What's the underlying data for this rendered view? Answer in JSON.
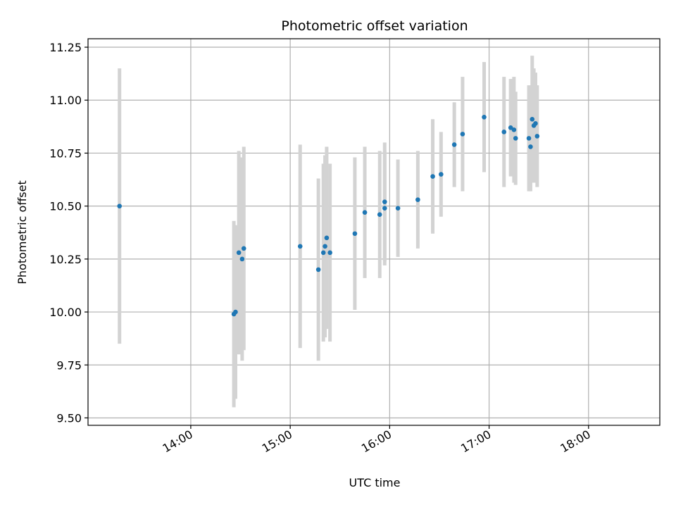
{
  "chart_data": {
    "type": "scatter",
    "title": "Photometric offset variation",
    "xlabel": "UTC time",
    "ylabel": "Photometric offset",
    "x_tick_labels": [
      "14:00",
      "15:00",
      "16:00",
      "17:00",
      "18:00"
    ],
    "y_tick_labels": [
      "9.50",
      "9.75",
      "10.00",
      "10.25",
      "10.50",
      "10.75",
      "11.00",
      "11.25"
    ],
    "grid": true,
    "colors": {
      "points": "#1f77b4",
      "error_bars": "#d3d3d3",
      "grid": "#b0b0b0"
    },
    "series": [
      {
        "x": [
          "13:17",
          "14:26",
          "14:27",
          "14:29",
          "14:31",
          "14:32",
          "15:06",
          "15:17",
          "15:20",
          "15:21",
          "15:22",
          "15:24",
          "15:39",
          "15:45",
          "15:54",
          "15:57",
          "15:57",
          "16:05",
          "16:17",
          "16:26",
          "16:31",
          "16:39",
          "16:44",
          "16:57",
          "17:09",
          "17:13",
          "17:15",
          "17:16",
          "17:24",
          "17:25",
          "17:26",
          "17:27",
          "17:28",
          "17:29"
        ],
        "y": [
          10.5,
          9.99,
          10.0,
          10.28,
          10.25,
          10.3,
          10.31,
          10.2,
          10.28,
          10.31,
          10.35,
          10.28,
          10.37,
          10.47,
          10.46,
          10.49,
          10.52,
          10.49,
          10.53,
          10.64,
          10.65,
          10.79,
          10.84,
          10.92,
          10.85,
          10.87,
          10.86,
          10.82,
          10.82,
          10.78,
          10.91,
          10.88,
          10.89,
          10.83
        ],
        "yerr": [
          0.65,
          0.44,
          0.41,
          0.48,
          0.48,
          0.48,
          0.48,
          0.43,
          0.42,
          0.43,
          0.43,
          0.42,
          0.36,
          0.31,
          0.3,
          0.27,
          0.28,
          0.23,
          0.23,
          0.27,
          0.2,
          0.2,
          0.27,
          0.26,
          0.26,
          0.23,
          0.25,
          0.22,
          0.25,
          0.21,
          0.3,
          0.27,
          0.24,
          0.24
        ]
      }
    ]
  }
}
